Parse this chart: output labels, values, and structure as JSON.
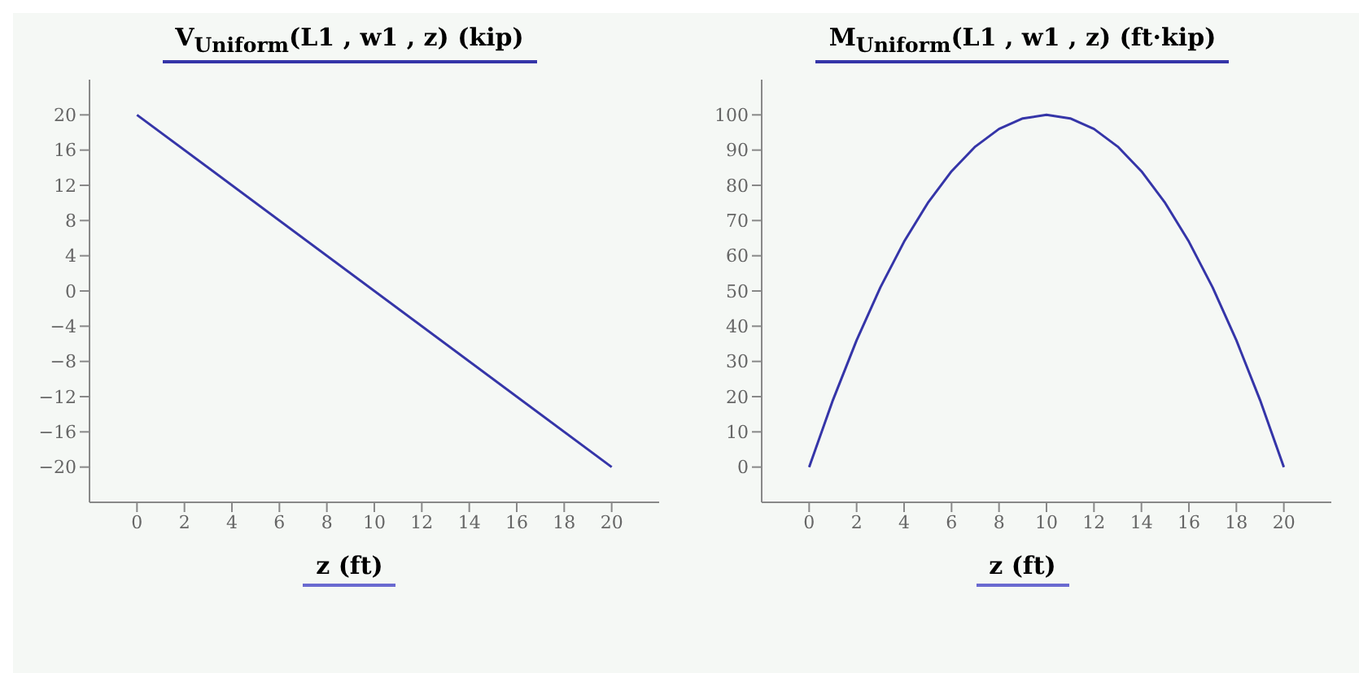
{
  "chart_data": [
    {
      "type": "line",
      "title": "V$_{Uniform}$(L1 , w1 , z)  (kip)",
      "xlabel": "z  (ft)",
      "x": [
        0,
        20
      ],
      "series": [
        {
          "color": "#3535a8",
          "values": [
            20,
            -20
          ]
        }
      ],
      "xlim": [
        -2,
        22
      ],
      "ylim": [
        -24,
        24
      ],
      "xticks": [
        0,
        2,
        4,
        6,
        8,
        10,
        12,
        14,
        16,
        18,
        20
      ],
      "yticks": [
        {
          "value": -20,
          "label": "−20"
        },
        {
          "value": -16,
          "label": "−16"
        },
        {
          "value": -12,
          "label": "−12"
        },
        {
          "value": -8,
          "label": "−8"
        },
        {
          "value": -4,
          "label": "−4"
        },
        0,
        4,
        8,
        12,
        16,
        20
      ],
      "grid": false
    },
    {
      "type": "line",
      "title": "M$_{Uniform}$(L1 , w1 , z)  (ft·kip)",
      "xlabel": "z  (ft)",
      "x": [
        0,
        1,
        2,
        3,
        4,
        5,
        6,
        7,
        8,
        9,
        10,
        11,
        12,
        13,
        14,
        15,
        16,
        17,
        18,
        19,
        20
      ],
      "series": [
        {
          "color": "#3535a8",
          "values": [
            0,
            19,
            36,
            51,
            64,
            75,
            84,
            91,
            96,
            99,
            100,
            99,
            96,
            91,
            84,
            75,
            64,
            51,
            36,
            19,
            0
          ]
        }
      ],
      "xlim": [
        -2,
        22
      ],
      "ylim": [
        -10,
        110
      ],
      "xticks": [
        0,
        2,
        4,
        6,
        8,
        10,
        12,
        14,
        16,
        18,
        20
      ],
      "yticks": [
        0,
        10,
        20,
        30,
        40,
        50,
        60,
        70,
        80,
        90,
        100
      ],
      "grid": false
    }
  ]
}
